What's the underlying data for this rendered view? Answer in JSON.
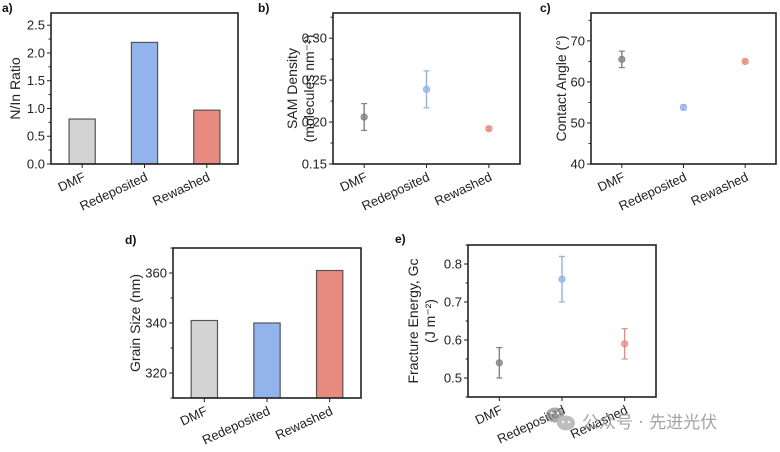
{
  "chart_data": [
    {
      "id": "a",
      "panel_label": "a)",
      "type": "bar",
      "categories": [
        "DMF",
        "Redeposited",
        "Rewashed"
      ],
      "values": [
        0.81,
        2.19,
        0.97
      ],
      "colors": [
        "#d3d3d3",
        "#92b4ec",
        "#e88a80"
      ],
      "ylabel": "N/In Ratio",
      "ylabel_line2": "",
      "ylim": [
        0,
        2.72
      ],
      "yticks": [
        0.0,
        0.5,
        1.0,
        1.5,
        2.0,
        2.5
      ],
      "ytick_labels": [
        "0.0",
        "0.5",
        "1.0",
        "1.5",
        "2.0",
        "2.5"
      ],
      "grid": false
    },
    {
      "id": "b",
      "panel_label": "b)",
      "type": "scatter",
      "categories": [
        "DMF",
        "Redeposited",
        "Rewashed"
      ],
      "values": [
        0.206,
        0.239,
        0.192
      ],
      "errors": [
        0.016,
        0.022,
        0.002
      ],
      "colors": [
        "#808080",
        "#8fb2ee",
        "#ef8a82"
      ],
      "ylabel": "SAM Density",
      "ylabel_line2": "(molecules nm⁻²)",
      "ylim": [
        0.15,
        0.33
      ],
      "yticks": [
        0.15,
        0.2,
        0.25,
        0.3
      ],
      "ytick_labels": [
        "0.15",
        "0.20",
        "0.25",
        "0.30"
      ],
      "grid": false
    },
    {
      "id": "c",
      "panel_label": "c)",
      "type": "scatter",
      "categories": [
        "DMF",
        "Redeposited",
        "Rewashed"
      ],
      "values": [
        65.5,
        53.8,
        65.0
      ],
      "errors": [
        2.0,
        0.6,
        0.3
      ],
      "colors": [
        "#808080",
        "#8fb2ee",
        "#ef8a82"
      ],
      "ylabel": "Contact Angle (°)",
      "ylabel_line2": "",
      "ylim": [
        40,
        76.8
      ],
      "yticks": [
        40,
        50,
        60,
        70
      ],
      "ytick_labels": [
        "40",
        "50",
        "60",
        "70"
      ],
      "grid": false
    },
    {
      "id": "d",
      "panel_label": "d)",
      "type": "bar",
      "categories": [
        "DMF",
        "Redeposited",
        "Rewashed"
      ],
      "values": [
        341,
        340,
        361
      ],
      "colors": [
        "#d3d3d3",
        "#92b4ec",
        "#e88a80"
      ],
      "ylabel": "Grain Size (nm)",
      "ylabel_line2": "",
      "ylim": [
        310,
        370
      ],
      "yticks": [
        320,
        340,
        360
      ],
      "ytick_labels": [
        "320",
        "340",
        "360"
      ],
      "grid": false
    },
    {
      "id": "e",
      "panel_label": "e)",
      "type": "scatter",
      "categories": [
        "DMF",
        "Redeposited",
        "Rewashed"
      ],
      "values": [
        0.54,
        0.76,
        0.59
      ],
      "errors": [
        0.04,
        0.06,
        0.04
      ],
      "colors": [
        "#808080",
        "#8fb2ee",
        "#ef8a82"
      ],
      "ylabel": "Fracture Energy, Gc",
      "ylabel_line2": "(J m⁻²)",
      "ylim": [
        0.45,
        0.85
      ],
      "yticks": [
        0.5,
        0.6,
        0.7,
        0.8
      ],
      "ytick_labels": [
        "0.5",
        "0.6",
        "0.7",
        "0.8"
      ],
      "grid": false
    }
  ],
  "watermark": {
    "icon": "wechat-icon",
    "text": "公众号 · 先进光伏"
  }
}
